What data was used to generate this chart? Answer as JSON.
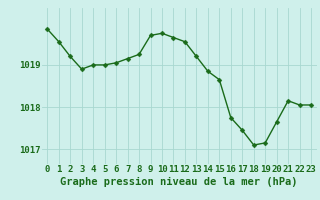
{
  "x": [
    0,
    1,
    2,
    3,
    4,
    5,
    6,
    7,
    8,
    9,
    10,
    11,
    12,
    13,
    14,
    15,
    16,
    17,
    18,
    19,
    20,
    21,
    22,
    23
  ],
  "y": [
    1019.85,
    1019.55,
    1019.2,
    1018.9,
    1019.0,
    1019.0,
    1019.05,
    1019.15,
    1019.25,
    1019.7,
    1019.75,
    1019.65,
    1019.55,
    1019.2,
    1018.85,
    1018.65,
    1017.75,
    1017.45,
    1017.1,
    1017.15,
    1017.65,
    1018.15,
    1018.05,
    1018.05
  ],
  "line_color": "#1a6b1a",
  "marker_color": "#1a6b1a",
  "bg_color": "#cff0eb",
  "grid_color": "#a8d8d0",
  "text_color": "#1a6b1a",
  "xlabel": "Graphe pression niveau de la mer (hPa)",
  "ylim_min": 1016.65,
  "ylim_max": 1020.35,
  "yticks": [
    1017,
    1018,
    1019
  ],
  "xticks": [
    0,
    1,
    2,
    3,
    4,
    5,
    6,
    7,
    8,
    9,
    10,
    11,
    12,
    13,
    14,
    15,
    16,
    17,
    18,
    19,
    20,
    21,
    22,
    23
  ],
  "xlabel_fontsize": 7.5,
  "tick_fontsize": 6.5,
  "line_width": 1.0,
  "marker_size": 2.5
}
